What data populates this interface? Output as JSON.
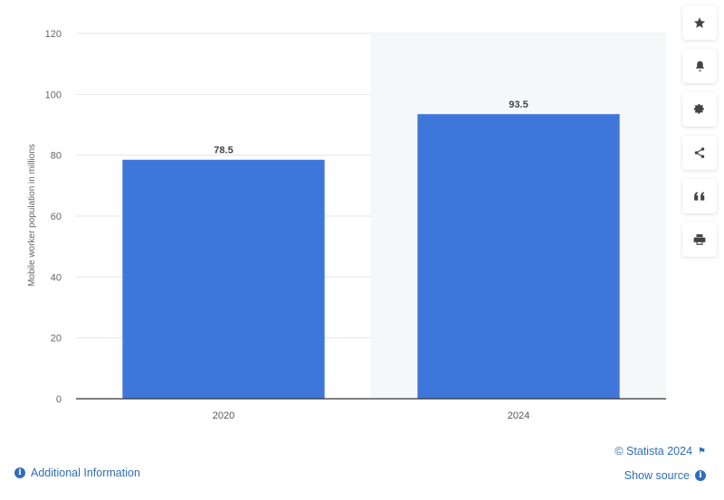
{
  "chart_data": {
    "type": "bar",
    "categories": [
      "2020",
      "2024"
    ],
    "values": [
      78.5,
      93.5
    ],
    "value_labels": [
      "78.5",
      "93.5"
    ],
    "ylabel": "Mobile worker population in millions",
    "ylim": [
      0,
      120
    ],
    "yticks": [
      0,
      20,
      40,
      60,
      80,
      100,
      120
    ],
    "bar_color": "#3f76d9",
    "highlighted_category": "2024",
    "grid": true
  },
  "toolbar": {
    "icons": [
      "star-icon",
      "bell-icon",
      "gear-icon",
      "share-icon",
      "quote-icon",
      "print-icon"
    ]
  },
  "footer": {
    "copyright": "© Statista 2024",
    "show_source": "Show source",
    "additional_info": "Additional Information"
  },
  "colors": {
    "link": "#2f6db8",
    "bar": "#3f76d9",
    "highlight_band": "#f6f7f9"
  }
}
